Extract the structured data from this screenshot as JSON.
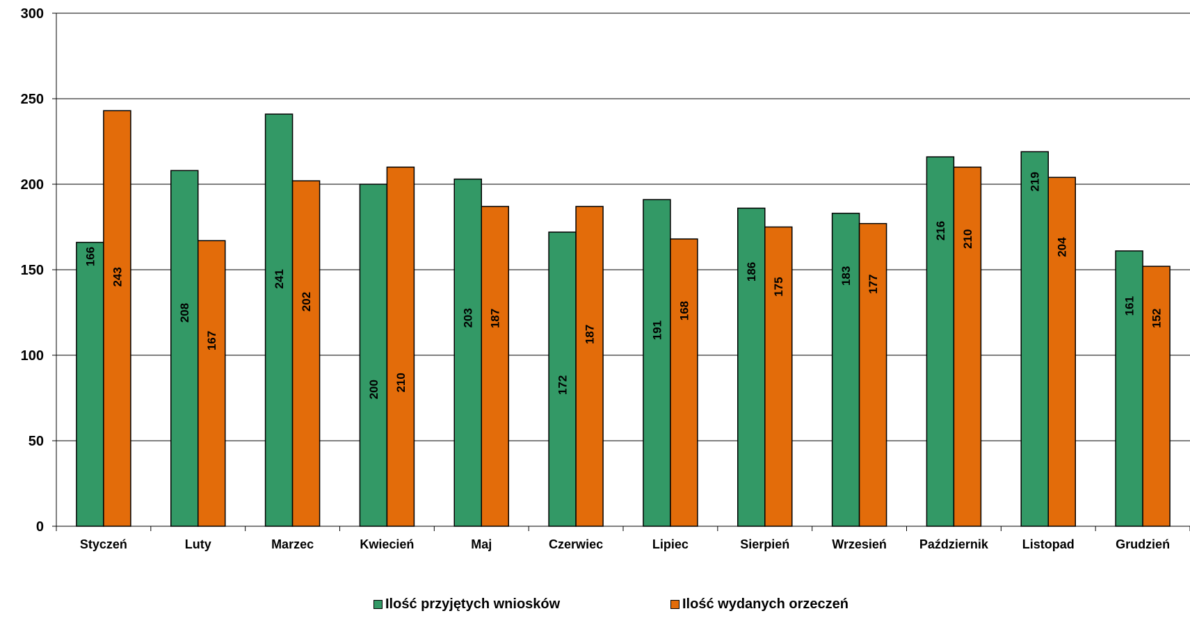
{
  "chart_data": {
    "type": "bar",
    "categories": [
      "Styczeń",
      "Luty",
      "Marzec",
      "Kwiecień",
      "Maj",
      "Czerwiec",
      "Lipiec",
      "Sierpień",
      "Wrzesień",
      "Październik",
      "Listopad",
      "Grudzień"
    ],
    "series": [
      {
        "name": "Ilość przyjętych wniosków",
        "color": "#339966",
        "values": [
          166,
          208,
          241,
          200,
          203,
          172,
          191,
          186,
          183,
          216,
          219,
          161
        ]
      },
      {
        "name": "Ilość wydanych orzeczeń",
        "color": "#E36C0A",
        "values": [
          243,
          167,
          202,
          210,
          187,
          187,
          168,
          175,
          177,
          210,
          204,
          152
        ]
      }
    ],
    "ylim": [
      0,
      300
    ],
    "yticks": [
      0,
      50,
      100,
      150,
      200,
      250,
      300
    ],
    "grid": true,
    "data_labels": "rotated-vertical",
    "legend_position": "bottom"
  }
}
